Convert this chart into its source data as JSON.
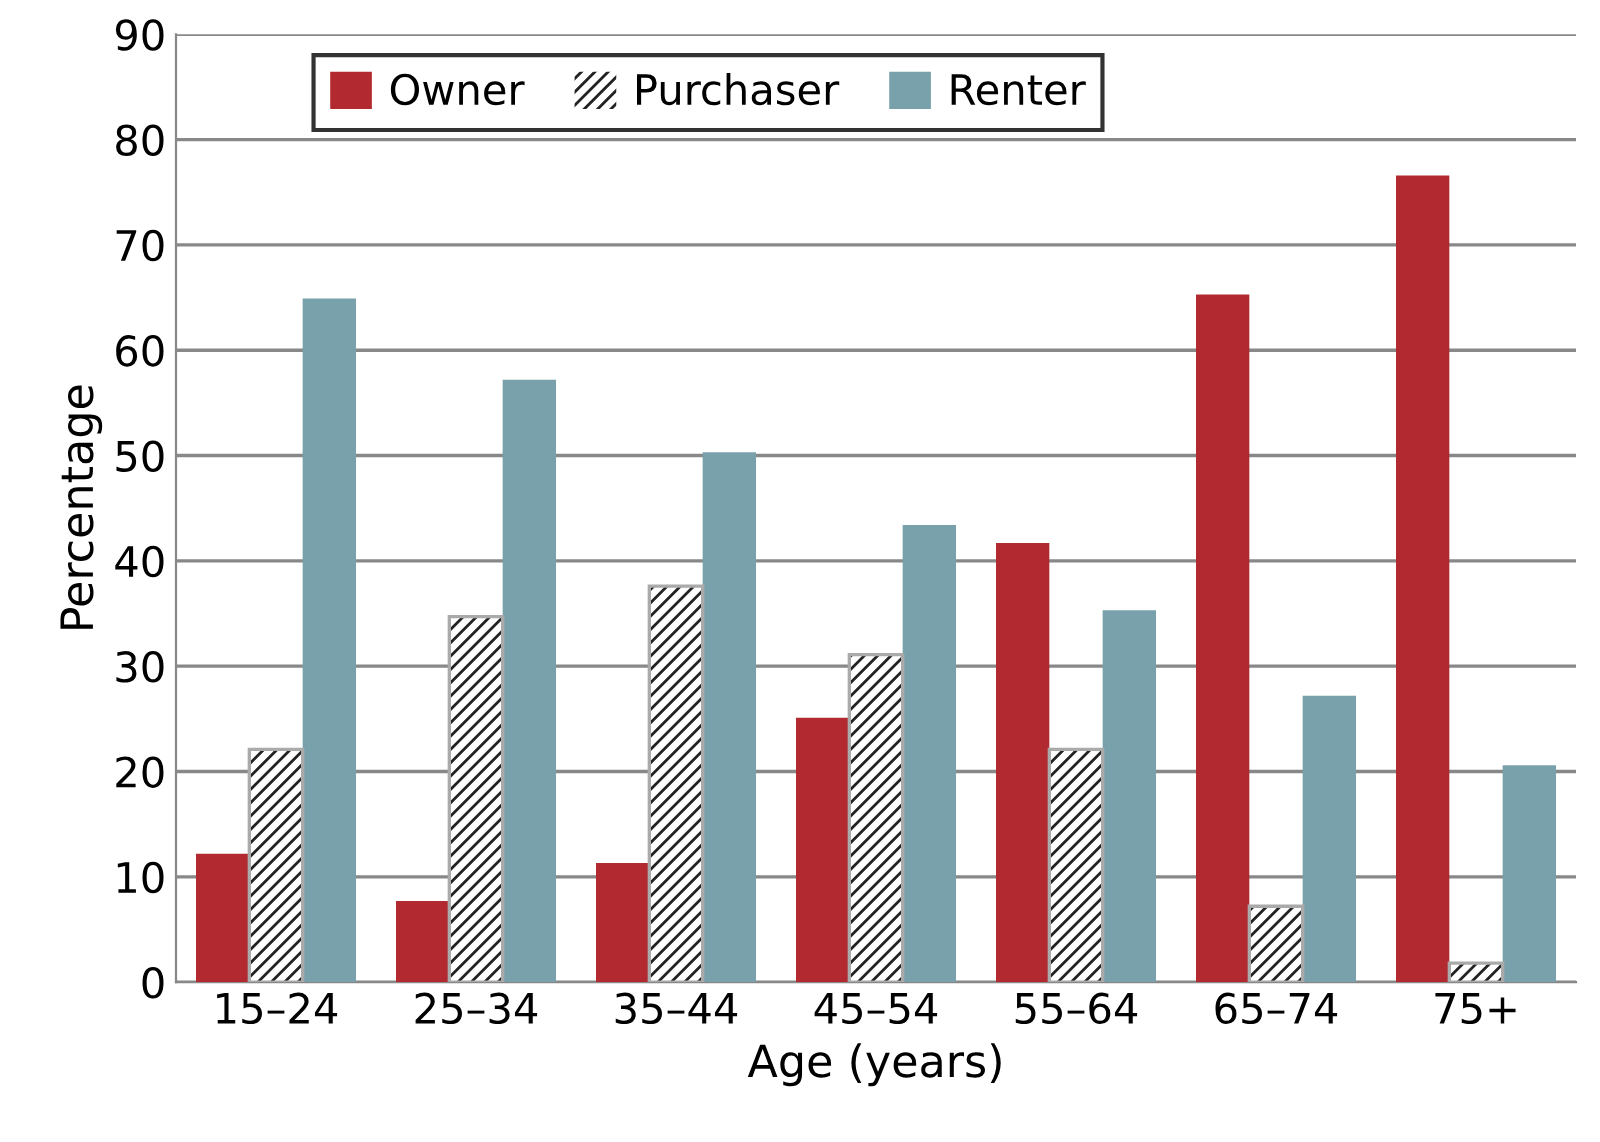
{
  "chart_data": {
    "type": "bar",
    "xlabel": "Age (years)",
    "ylabel": "Percentage",
    "categories": [
      "15–24",
      "25–34",
      "35–44",
      "45–54",
      "55–64",
      "65–74",
      "75+"
    ],
    "series": [
      {
        "name": "Owner",
        "color": "#b22a2f",
        "values": [
          12.2,
          7.7,
          11.3,
          25.1,
          41.7,
          65.3,
          76.6
        ]
      },
      {
        "name": "Purchaser",
        "color": "#ffffff",
        "values": [
          22.1,
          34.7,
          37.6,
          31.1,
          22.1,
          7.2,
          1.8
        ]
      },
      {
        "name": "Renter",
        "color": "#78a1ac",
        "values": [
          64.9,
          57.2,
          50.3,
          43.4,
          35.3,
          27.2,
          20.6
        ]
      }
    ],
    "ylim": [
      0,
      90
    ],
    "yticks": [
      0,
      10,
      20,
      30,
      40,
      50,
      60,
      70,
      80,
      90
    ],
    "grid": "y",
    "legend": "top"
  }
}
